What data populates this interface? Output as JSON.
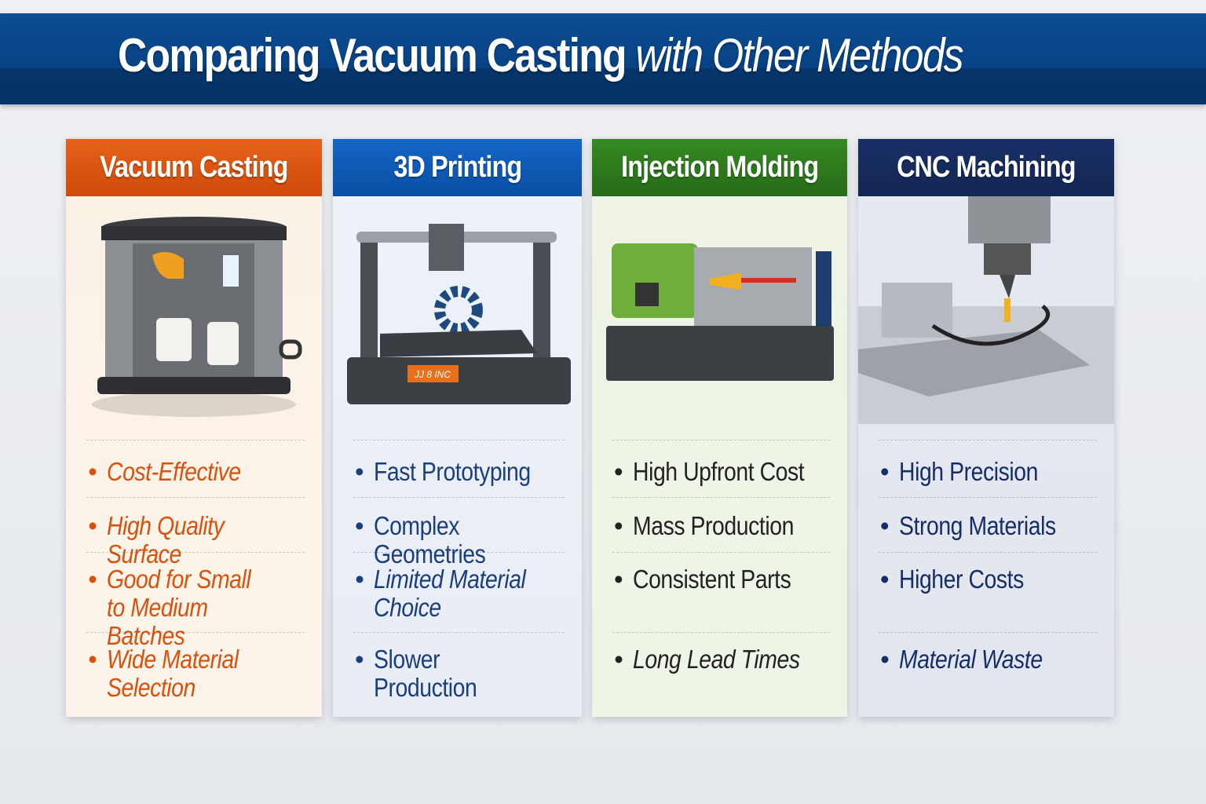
{
  "title": {
    "main": "Comparing Vacuum Casting",
    "emphasis": "with Other Methods"
  },
  "colors": {
    "banner": "#0a4a8c",
    "vacuum": "#e05a12",
    "printing": "#0d58b3",
    "molding": "#2f7a1f",
    "cnc": "#142a5c"
  },
  "columns": [
    {
      "name": "Vacuum Casting",
      "illustration": "vacuum-casting-chamber",
      "items": [
        {
          "text": "Cost-Effective",
          "italic": true
        },
        {
          "text": "High Quality Surface",
          "italic": true
        },
        {
          "text": "Good for Small\nto Medium Batches",
          "italic": true
        },
        {
          "text": "Wide Material\nSelection",
          "italic": true
        }
      ]
    },
    {
      "name": "3D Printing",
      "illustration": "3d-printer",
      "display_text": "JJ 8 INC",
      "items": [
        {
          "text": "Fast Prototyping",
          "italic": false
        },
        {
          "text": "Complex Geometries",
          "italic": false
        },
        {
          "text": "Limited Material Choice",
          "italic": true
        },
        {
          "text": "Slower Production",
          "italic": false
        }
      ]
    },
    {
      "name": "Injection Molding",
      "illustration": "injection-molding-machine",
      "items": [
        {
          "text": "High Upfront Cost",
          "italic": false
        },
        {
          "text": "Mass Production",
          "italic": false
        },
        {
          "text": "Consistent Parts",
          "italic": false
        },
        {
          "text": "Long Lead Times",
          "italic": true
        }
      ]
    },
    {
      "name": "CNC Machining",
      "illustration": "cnc-mill",
      "items": [
        {
          "text": "High Precision",
          "italic": false
        },
        {
          "text": "Strong Materials",
          "italic": false
        },
        {
          "text": "Higher Costs",
          "italic": false
        },
        {
          "text": "Material Waste",
          "italic": true
        }
      ]
    }
  ]
}
